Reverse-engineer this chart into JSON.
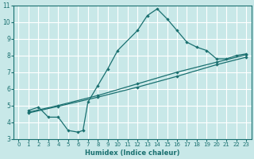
{
  "bg_color": "#c8e8e8",
  "grid_color": "#ffffff",
  "line_color": "#1a7070",
  "marker_color": "#1a7070",
  "xlim": [
    -0.5,
    23.5
  ],
  "ylim": [
    3,
    11
  ],
  "xticks": [
    0,
    1,
    2,
    3,
    4,
    5,
    6,
    7,
    8,
    9,
    10,
    11,
    12,
    13,
    14,
    15,
    16,
    17,
    18,
    19,
    20,
    21,
    22,
    23
  ],
  "yticks": [
    3,
    4,
    5,
    6,
    7,
    8,
    9,
    10,
    11
  ],
  "xlabel": "Humidex (Indice chaleur)",
  "curve1_x": [
    1,
    2,
    3,
    4,
    5,
    6,
    6.5,
    7,
    8,
    9,
    10,
    12,
    13,
    14,
    15,
    16,
    17,
    18,
    19,
    20,
    21,
    22,
    23
  ],
  "curve1_y": [
    4.7,
    4.9,
    4.3,
    4.3,
    3.5,
    3.4,
    3.5,
    5.2,
    6.2,
    7.2,
    8.3,
    9.5,
    10.4,
    10.8,
    10.2,
    9.5,
    8.8,
    8.5,
    8.3,
    7.8,
    7.8,
    8.0,
    8.1
  ],
  "line2_x": [
    1,
    4,
    8,
    12,
    16,
    20,
    23
  ],
  "line2_y": [
    4.6,
    5.0,
    5.6,
    6.3,
    7.0,
    7.6,
    8.05
  ],
  "line3_x": [
    1,
    4,
    8,
    12,
    16,
    20,
    23
  ],
  "line3_y": [
    4.55,
    4.95,
    5.5,
    6.1,
    6.75,
    7.45,
    7.9
  ]
}
